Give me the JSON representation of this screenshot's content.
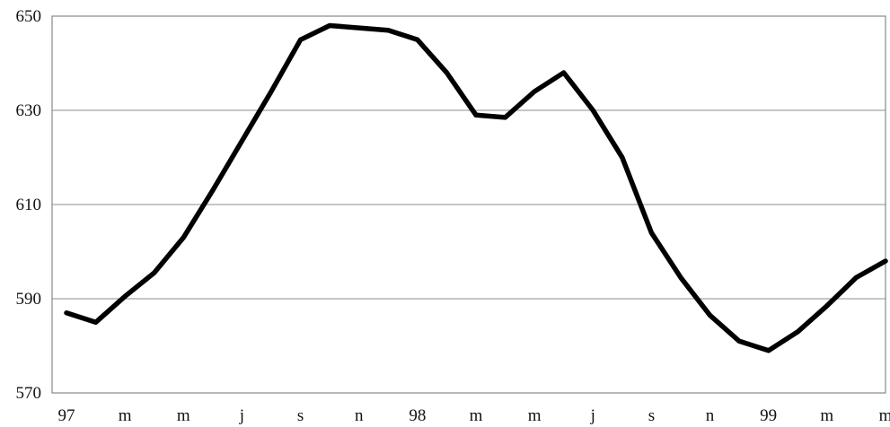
{
  "chart_data": {
    "type": "line",
    "x_tick_labels": [
      "97",
      "m",
      "m",
      "j",
      "s",
      "n",
      "98",
      "m",
      "m",
      "j",
      "s",
      "n",
      "99",
      "m",
      "m"
    ],
    "y_tick_labels": [
      "570",
      "590",
      "610",
      "630",
      "650"
    ],
    "ylim": [
      570,
      650
    ],
    "grid": "horizontal",
    "series": [
      {
        "values": [
          587,
          585,
          590.5,
          595.5,
          603,
          613,
          623.5,
          634,
          645,
          648,
          647.5,
          647,
          645,
          638,
          629,
          628.5,
          634,
          638,
          630,
          620,
          604,
          594.5,
          586.5,
          581,
          579,
          583,
          588.5,
          594.5,
          598
        ],
        "color": "#000000"
      }
    ]
  }
}
